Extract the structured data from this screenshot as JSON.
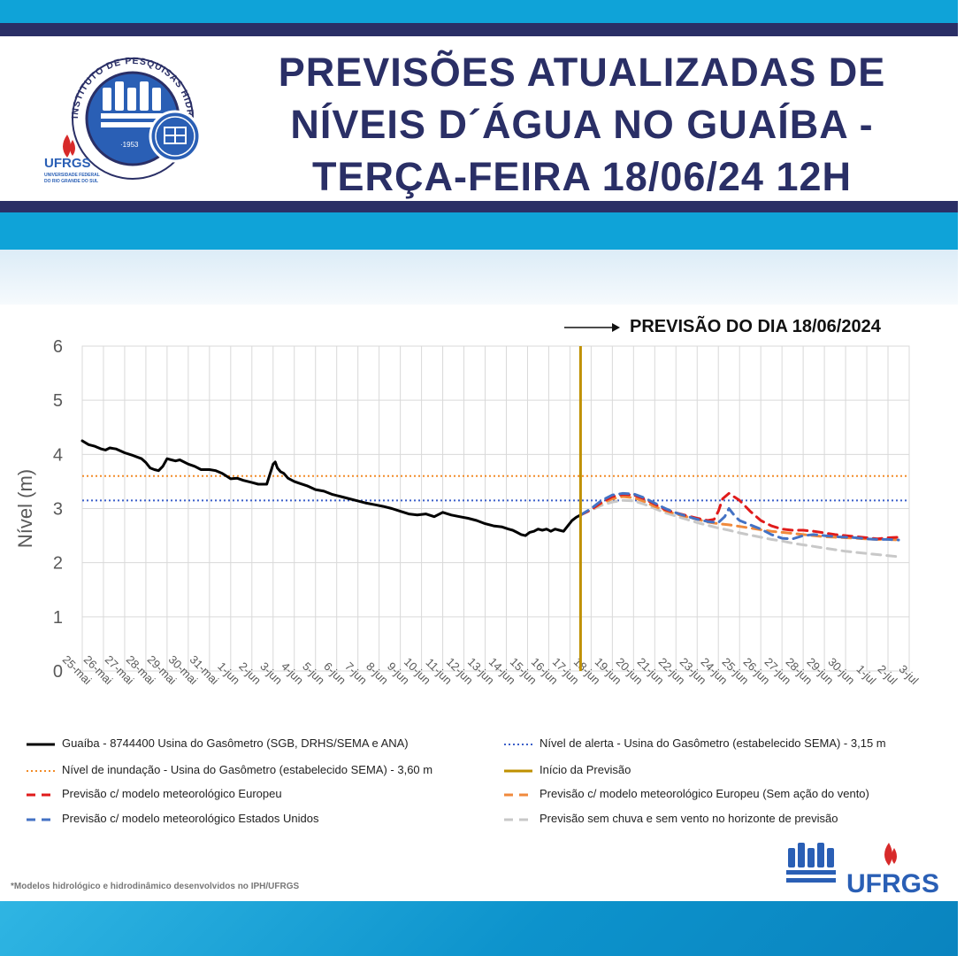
{
  "header": {
    "title_line1": "PREVISÕES ATUALIZADAS DE",
    "title_line2": "NÍVEIS D´ÁGUA NO GUAÍBA -",
    "title_line3": "TERÇA-FEIRA 18/06/24 12H",
    "logo_ring_text": "INSTITUTO DE PESQUISAS HIDRÁULICAS",
    "logo_year": "·1953",
    "ufrgs": "UFRGS",
    "ufrgs_sub1": "UNIVERSIDADE FEDERAL",
    "ufrgs_sub2": "DO RIO GRANDE DO SUL"
  },
  "forecast_label": "PREVISÃO DO DIA 18/06/2024",
  "footnote": "*Modelos hidrológico e hidrodinâmico desenvolvidos no IPH/UFRGS",
  "footer_logo_text": "UFRGS",
  "colors": {
    "navy": "#2a2f66",
    "cyan": "#0fa3d8",
    "observed": "#000000",
    "alert": "#3b5fc9",
    "flood": "#f28c28",
    "forecast_start": "#bf9000",
    "europe": "#e01b1b",
    "europe_no_wind": "#f08a3c",
    "usa": "#4472c4",
    "no_rain": "#c8c8c8"
  },
  "chart_data": {
    "type": "line",
    "ylabel": "Nível (m)",
    "ylim": [
      0,
      6
    ],
    "yticks": [
      "0",
      "1",
      "2",
      "3",
      "4",
      "5",
      "6"
    ],
    "x_tick_labels": [
      "25-mai",
      "26-mai",
      "27-mai",
      "28-mai",
      "29-mai",
      "30-mai",
      "31-mai",
      "1-jun",
      "2-jun",
      "3-jun",
      "4-jun",
      "5-jun",
      "6-jun",
      "7-jun",
      "8-jun",
      "9-jun",
      "10-jun",
      "11-jun",
      "12-jun",
      "13-jun",
      "14-jun",
      "15-jun",
      "16-jun",
      "17-jun",
      "18-jun",
      "19-jun",
      "20-jun",
      "21-jun",
      "22-jun",
      "23-jun",
      "24-jun",
      "25-jun",
      "26-jun",
      "27-jun",
      "28-jun",
      "29-jun",
      "30-jun",
      "1-jul",
      "2-jul",
      "3-jul"
    ],
    "grid": true,
    "legend_position": "bottom",
    "forecast_start_day": 23.5,
    "reference_lines": [
      {
        "name": "Nível de alerta - Usina do Gasômetro (estabelecido SEMA) - 3,15 m",
        "value": 3.15,
        "style": "dotted",
        "color": "#3b5fc9"
      },
      {
        "name": "Nível de inundação - Usina do Gasômetro (estabelecido SEMA) - 3,60 m",
        "value": 3.6,
        "style": "dotted",
        "color": "#f28c28"
      }
    ],
    "series": [
      {
        "name": "Guaíba - 8744400 Usina do Gasômetro (SGB, DRHS/SEMA e ANA)",
        "style": "solid",
        "color": "#000000",
        "x": [
          0,
          0.3,
          0.6,
          0.9,
          1.1,
          1.3,
          1.6,
          2,
          2.4,
          2.8,
          3,
          3.2,
          3.4,
          3.6,
          3.8,
          4,
          4.2,
          4.4,
          4.6,
          5,
          5.3,
          5.6,
          6,
          6.3,
          6.6,
          7,
          7.3,
          7.6,
          8,
          8.3,
          8.7,
          9,
          9.1,
          9.2,
          9.35,
          9.5,
          9.7,
          10,
          10.3,
          10.6,
          11,
          11.4,
          11.8,
          12.2,
          12.6,
          13,
          13.4,
          13.8,
          14.2,
          14.6,
          15,
          15.4,
          15.8,
          16.2,
          16.6,
          17,
          17.4,
          17.8,
          18.2,
          18.6,
          19,
          19.4,
          19.8,
          20.1,
          20.3,
          20.5,
          20.7,
          20.9,
          21.1,
          21.3,
          21.5,
          21.7,
          21.9,
          22.1,
          22.3,
          22.5,
          22.7,
          22.9,
          23.1,
          23.3,
          23.5
        ],
        "values": [
          4.25,
          4.18,
          4.15,
          4.1,
          4.08,
          4.12,
          4.1,
          4.03,
          3.98,
          3.92,
          3.85,
          3.75,
          3.72,
          3.7,
          3.78,
          3.92,
          3.9,
          3.88,
          3.9,
          3.82,
          3.78,
          3.72,
          3.72,
          3.7,
          3.65,
          3.55,
          3.56,
          3.52,
          3.48,
          3.45,
          3.45,
          3.82,
          3.86,
          3.75,
          3.68,
          3.65,
          3.56,
          3.5,
          3.46,
          3.42,
          3.35,
          3.32,
          3.26,
          3.22,
          3.18,
          3.14,
          3.1,
          3.07,
          3.04,
          3.0,
          2.95,
          2.9,
          2.88,
          2.9,
          2.85,
          2.93,
          2.88,
          2.85,
          2.82,
          2.78,
          2.72,
          2.68,
          2.66,
          2.62,
          2.6,
          2.56,
          2.52,
          2.5,
          2.56,
          2.58,
          2.62,
          2.6,
          2.62,
          2.58,
          2.62,
          2.6,
          2.58,
          2.68,
          2.78,
          2.84,
          2.88
        ]
      },
      {
        "name": "Previsão c/ modelo meteorológico Europeu",
        "style": "dashed",
        "color": "#e01b1b",
        "x": [
          23.5,
          24,
          24.5,
          25,
          25.5,
          26,
          26.5,
          27,
          27.5,
          28,
          28.5,
          29,
          29.5,
          29.8,
          30,
          30.2,
          30.5,
          31,
          31.5,
          32,
          32.5,
          33,
          33.5,
          34,
          34.5,
          35,
          35.5,
          36,
          36.5,
          37,
          37.5,
          38,
          38.5
        ],
        "values": [
          2.88,
          2.98,
          3.12,
          3.22,
          3.26,
          3.25,
          3.18,
          3.08,
          2.98,
          2.92,
          2.87,
          2.82,
          2.78,
          2.8,
          2.95,
          3.18,
          3.28,
          3.15,
          2.95,
          2.78,
          2.68,
          2.62,
          2.6,
          2.6,
          2.58,
          2.55,
          2.52,
          2.5,
          2.48,
          2.46,
          2.44,
          2.46,
          2.47
        ]
      },
      {
        "name": "Previsão c/ modelo meteorológico Europeu (Sem ação do vento)",
        "style": "dashed",
        "color": "#f08a3c",
        "x": [
          23.5,
          24,
          24.5,
          25,
          25.5,
          26,
          26.5,
          27,
          27.5,
          28,
          28.5,
          29,
          29.5,
          30,
          30.5,
          31,
          31.5,
          32,
          32.5,
          33,
          33.5,
          34,
          34.5,
          35,
          35.5,
          36,
          36.5,
          37,
          37.5,
          38,
          38.5
        ],
        "values": [
          2.88,
          2.98,
          3.1,
          3.18,
          3.22,
          3.2,
          3.13,
          3.04,
          2.96,
          2.9,
          2.85,
          2.8,
          2.75,
          2.72,
          2.7,
          2.67,
          2.64,
          2.61,
          2.58,
          2.56,
          2.54,
          2.52,
          2.5,
          2.48,
          2.47,
          2.46,
          2.45,
          2.44,
          2.43,
          2.43,
          2.42
        ]
      },
      {
        "name": "Previsão c/ modelo meteorológico Estados Unidos",
        "style": "dashed",
        "color": "#4472c4",
        "x": [
          23.5,
          24,
          24.5,
          25,
          25.5,
          26,
          26.5,
          27,
          27.5,
          28,
          28.5,
          29,
          29.5,
          30,
          30.3,
          30.5,
          30.8,
          31,
          31.5,
          32,
          32.5,
          33,
          33.5,
          34,
          34.5,
          35,
          35.5,
          36,
          36.5,
          37,
          37.5,
          38,
          38.5
        ],
        "values": [
          2.88,
          3.0,
          3.15,
          3.25,
          3.28,
          3.27,
          3.2,
          3.1,
          3.0,
          2.92,
          2.86,
          2.8,
          2.76,
          2.74,
          2.85,
          3.0,
          2.85,
          2.78,
          2.7,
          2.62,
          2.52,
          2.45,
          2.44,
          2.5,
          2.52,
          2.5,
          2.48,
          2.47,
          2.46,
          2.44,
          2.43,
          2.43,
          2.42
        ]
      },
      {
        "name": "Previsão sem chuva e sem vento no horizonte de previsão",
        "style": "dashed",
        "color": "#c8c8c8",
        "x": [
          23.5,
          24,
          24.5,
          25,
          25.5,
          26,
          26.5,
          27,
          27.5,
          28,
          28.5,
          29,
          29.5,
          30,
          30.5,
          31,
          31.5,
          32,
          32.5,
          33,
          33.5,
          34,
          34.5,
          35,
          35.5,
          36,
          36.5,
          37,
          37.5,
          38,
          38.5
        ],
        "values": [
          2.88,
          2.97,
          3.06,
          3.12,
          3.15,
          3.14,
          3.08,
          3.0,
          2.92,
          2.86,
          2.8,
          2.74,
          2.69,
          2.64,
          2.6,
          2.55,
          2.51,
          2.47,
          2.43,
          2.4,
          2.36,
          2.33,
          2.3,
          2.27,
          2.24,
          2.21,
          2.19,
          2.17,
          2.15,
          2.13,
          2.11
        ]
      }
    ],
    "legend_extra": [
      {
        "name": "Início da Previsão",
        "style": "solid",
        "color": "#bf9000"
      }
    ]
  }
}
